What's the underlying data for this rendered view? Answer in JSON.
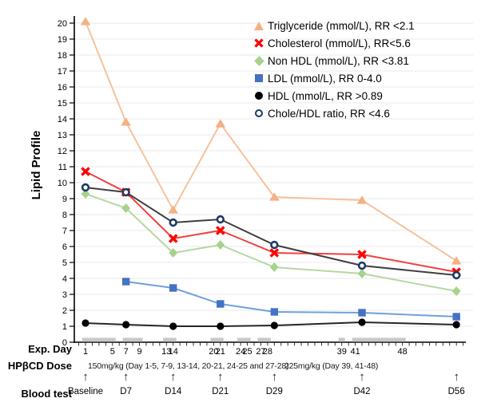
{
  "chart_data": {
    "type": "line",
    "title": "",
    "ylabel": "Lipid Profile",
    "ylim": [
      0,
      20
    ],
    "y_tick_step": 1,
    "grid": "horizontal",
    "legend_position": "top-right",
    "x_days": [
      1,
      7,
      14,
      21,
      29,
      42,
      56
    ],
    "x_axis_day_range": [
      0,
      57
    ],
    "x_tick_labels": [
      "1",
      "5",
      "7",
      "9",
      "13",
      "14",
      "20",
      "21",
      "24",
      "25",
      "27",
      "28",
      "39",
      "41",
      "48"
    ],
    "x_tick_label_days": [
      1,
      5,
      7,
      9,
      13,
      14,
      20,
      21,
      24,
      25,
      27,
      28,
      39,
      41,
      48
    ],
    "dose_band_day_ranges": [
      [
        1,
        5
      ],
      [
        7,
        9
      ],
      [
        13,
        14
      ],
      [
        20,
        21
      ],
      [
        24,
        25
      ],
      [
        27,
        28
      ],
      [
        39,
        39
      ],
      [
        41,
        48
      ]
    ],
    "series": [
      {
        "name": "Triglyceride (mmol/L), RR <2.1",
        "marker": "triangle",
        "color": "#F4B183",
        "line_color": "#F6C29C",
        "values": [
          20.1,
          13.8,
          8.3,
          13.7,
          9.1,
          8.9,
          5.1
        ]
      },
      {
        "name": "Cholesterol (mmol/L), RR<5.6",
        "marker": "x",
        "color": "#FF0000",
        "line_color": "#F04040",
        "values": [
          10.7,
          9.4,
          6.5,
          7.0,
          5.6,
          5.5,
          4.4
        ]
      },
      {
        "name": "Non HDL (mmol/L), RR <3.81",
        "marker": "diamond",
        "color": "#A9D18E",
        "line_color": "#B5D8A0",
        "values": [
          9.3,
          8.4,
          5.6,
          6.1,
          4.7,
          4.3,
          3.2
        ]
      },
      {
        "name": "LDL (mmol/L), RR 0-4.0",
        "marker": "square",
        "color": "#4472C4",
        "line_color": "#6FA0DC",
        "values": [
          null,
          3.8,
          3.4,
          2.4,
          1.9,
          1.85,
          1.6
        ]
      },
      {
        "name": "HDL (mmol/L, RR >0.89",
        "marker": "circle",
        "color": "#000000",
        "line_color": "#262626",
        "values": [
          1.2,
          1.1,
          1.0,
          1.0,
          1.05,
          1.25,
          1.1
        ]
      },
      {
        "name": "Chole/HDL ratio, RR <4.6",
        "marker": "open-circle",
        "color": "#1F3864",
        "line_color": "#3F3F3F",
        "values": [
          9.7,
          9.4,
          7.5,
          7.7,
          6.1,
          4.8,
          4.2
        ]
      }
    ]
  },
  "axis_rows": {
    "exp_day_label": "Exp. Day",
    "dose_label": "HPβCD Dose",
    "blood_test_label": "Blood test",
    "arrow_icon": "↑",
    "doses": [
      {
        "text": "150mg/kg (Day 1-5, 7-9, 13-14, 20-21, 24-25 and 27-28)"
      },
      {
        "text": "225mg/kg (Day 39, 41-48)"
      }
    ],
    "blood_tests": [
      {
        "label": "Baseline",
        "day": 1
      },
      {
        "label": "D7",
        "day": 7
      },
      {
        "label": "D14",
        "day": 14
      },
      {
        "label": "D21",
        "day": 21
      },
      {
        "label": "D29",
        "day": 29
      },
      {
        "label": "D42",
        "day": 42
      },
      {
        "label": "D56",
        "day": 56
      }
    ]
  },
  "colors": {
    "axis": "#000000",
    "grid": "#E8E8E8",
    "dose_band": "#C8C8C8",
    "tick_label": "#000000"
  }
}
